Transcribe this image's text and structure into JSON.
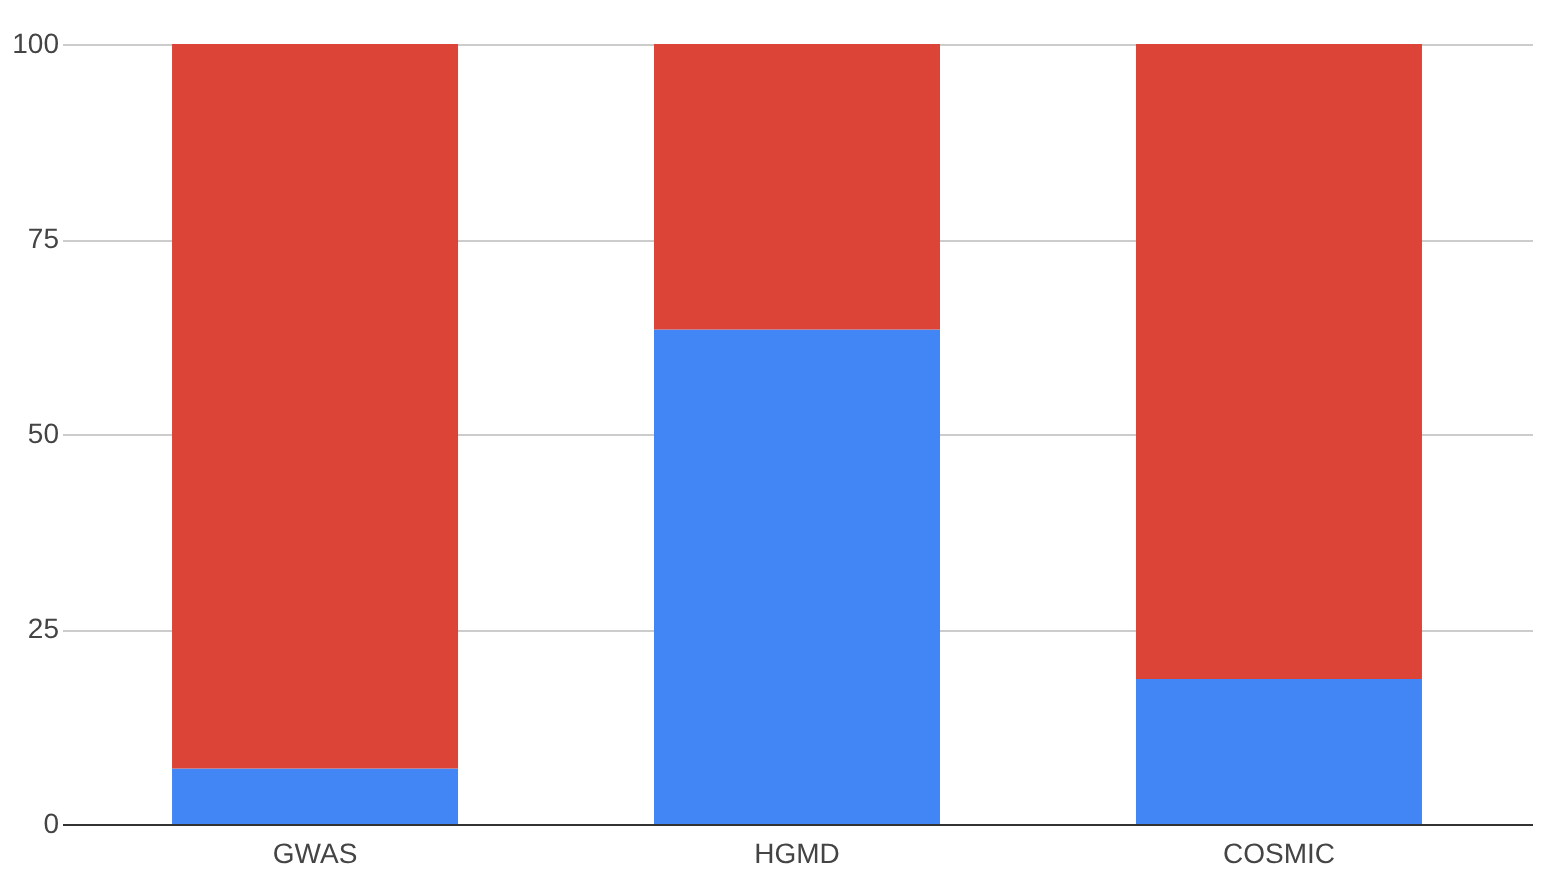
{
  "chart_data": {
    "type": "bar",
    "stacked": true,
    "categories": [
      "GWAS",
      "HGMD",
      "COSMIC"
    ],
    "series": [
      {
        "color": "#4285f4",
        "values": [
          7.1,
          63.4,
          18.6
        ]
      },
      {
        "color": "#db4437",
        "values": [
          92.9,
          36.6,
          81.4
        ]
      }
    ],
    "ylim": [
      0,
      100
    ],
    "yticks": [
      0,
      25,
      50,
      75,
      100
    ],
    "grid": "y"
  }
}
